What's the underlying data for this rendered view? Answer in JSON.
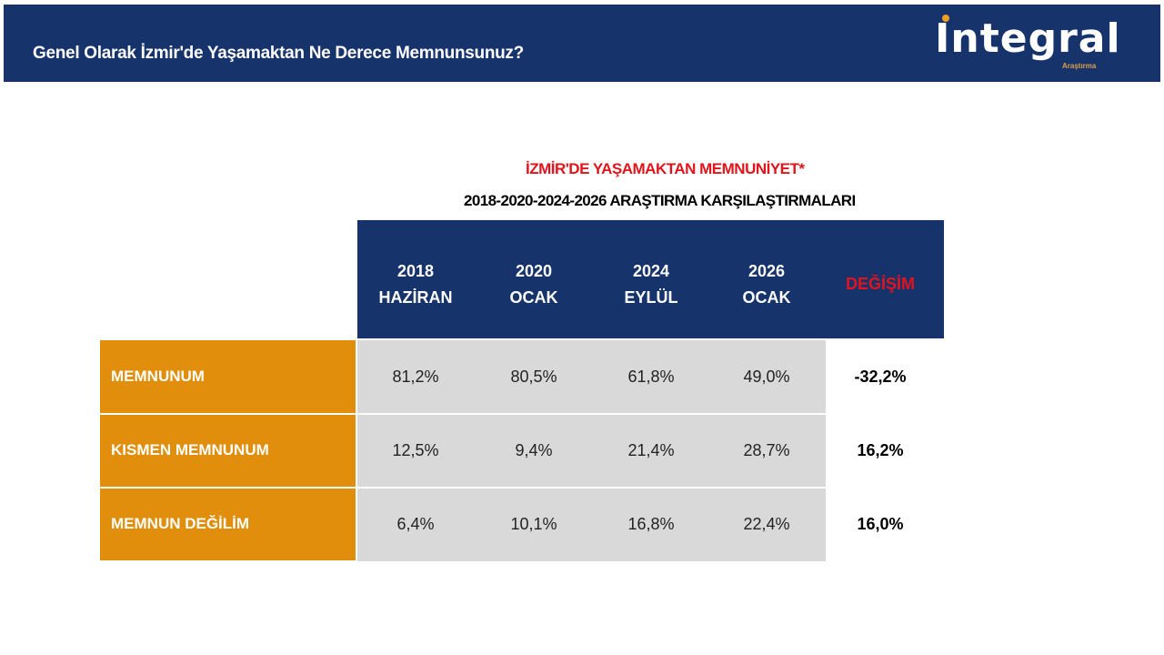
{
  "header": {
    "title": "Genel Olarak İzmir'de Yaşamaktan Ne Derece Memnunsunuz?",
    "logo_text": "Integral",
    "logo_sub": "Araştırma"
  },
  "colors": {
    "navy": "#17336b",
    "orange": "#e08e0b",
    "red": "#e2131b",
    "gray": "#d9d9d9"
  },
  "chart_data": {
    "type": "table",
    "title": "İZMİR'DE YAŞAMAKTAN MEMNUNİYET*",
    "subtitle": "2018-2020-2024-2026 ARAŞTIRMA KARŞILAŞTIRMALARI",
    "columns": [
      {
        "year": "2018",
        "month": "HAZİRAN"
      },
      {
        "year": "2020",
        "month": "OCAK"
      },
      {
        "year": "2024",
        "month": "EYLÜL"
      },
      {
        "year": "2026",
        "month": "OCAK"
      },
      {
        "year": "",
        "month": "DEĞİŞİM"
      }
    ],
    "rows": [
      {
        "label": "MEMNUNUM",
        "values": [
          "81,2%",
          "80,5%",
          "61,8%",
          "49,0%",
          "-32,2%"
        ]
      },
      {
        "label": "KISMEN MEMNUNUM",
        "values": [
          "12,5%",
          "9,4%",
          "21,4%",
          "28,7%",
          "16,2%"
        ]
      },
      {
        "label": "MEMNUN DEĞİLİM",
        "values": [
          "6,4%",
          "10,1%",
          "16,8%",
          "22,4%",
          "16,0%"
        ]
      }
    ]
  }
}
